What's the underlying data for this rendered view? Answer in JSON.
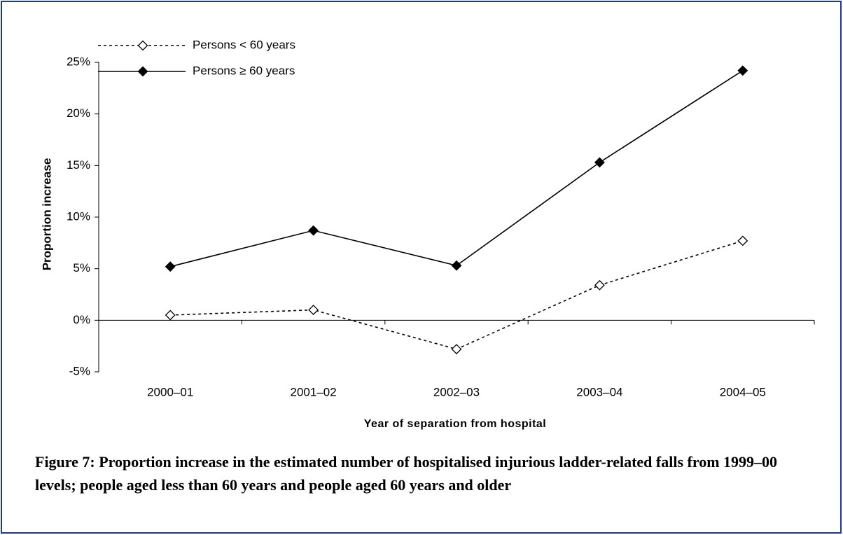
{
  "chart_data": {
    "type": "line",
    "x_label": "Year of separation from hospital",
    "y_label": "Proportion increase",
    "caption": "Figure 7: Proportion increase in the estimated number of hospitalised injurious ladder-related falls from 1999–00 levels; people aged less than 60 years and people aged 60 years and older",
    "categories": [
      "2000–01",
      "2001–02",
      "2002–03",
      "2003–04",
      "2004–05"
    ],
    "series": [
      {
        "name": "Persons < 60 years",
        "color": "#000000",
        "line_style": "dotted",
        "marker_fill": "#ffffff",
        "values": [
          0.5,
          1.0,
          -2.8,
          3.4,
          7.7
        ]
      },
      {
        "name": "Persons ≥ 60 years",
        "color": "#000000",
        "line_style": "solid",
        "marker_fill": "#000000",
        "values": [
          5.2,
          8.7,
          5.3,
          15.3,
          24.2
        ]
      }
    ],
    "ylim": [
      -5,
      25
    ],
    "yticks": [
      {
        "value": -5,
        "label": "-5%"
      },
      {
        "value": 0,
        "label": "0%"
      },
      {
        "value": 5,
        "label": "5%"
      },
      {
        "value": 10,
        "label": "10%"
      },
      {
        "value": 15,
        "label": "15%"
      },
      {
        "value": 20,
        "label": "20%"
      },
      {
        "value": 25,
        "label": "25%"
      }
    ],
    "grid": false,
    "legend": "top-left"
  }
}
